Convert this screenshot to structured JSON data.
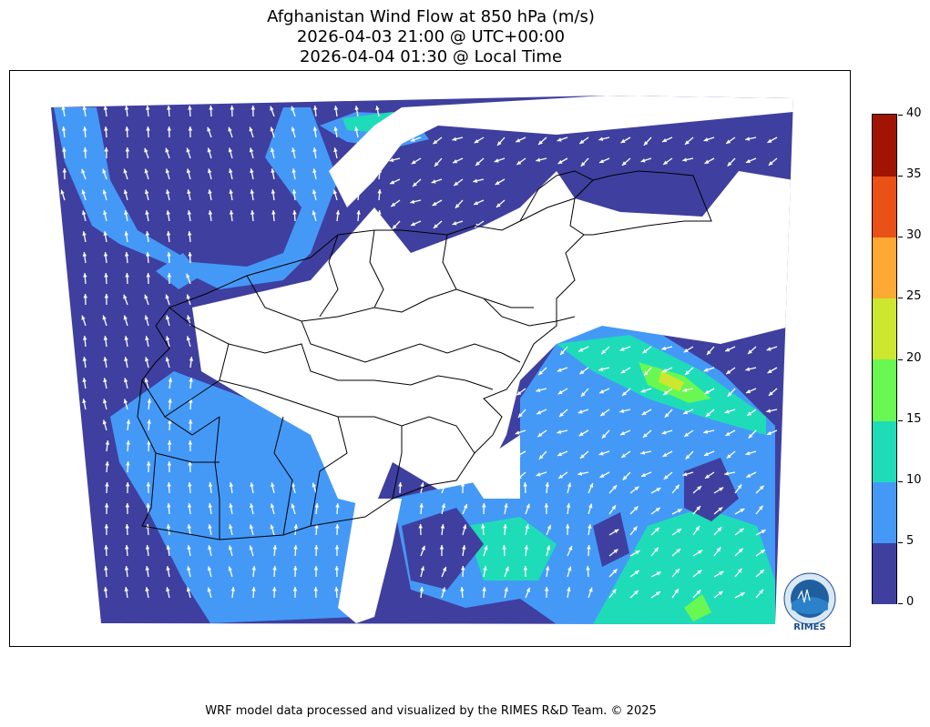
{
  "title": {
    "line1": "Afghanistan Wind Flow at 850 hPa (m/s)",
    "line2": "2026-04-03 21:00 @ UTC+00:00",
    "line3": "2026-04-04 01:30 @ Local Time"
  },
  "colorbar": {
    "ticks": [
      "0",
      "5",
      "10",
      "15",
      "20",
      "25",
      "30",
      "35",
      "40"
    ],
    "colors": [
      "#3f3f9f",
      "#4499f7",
      "#1fdcb8",
      "#69f752",
      "#cde72e",
      "#fda934",
      "#e95116",
      "#a11404"
    ]
  },
  "footer": "WRF model data processed and visualized by the RIMES R&D Team. © 2025",
  "logo": {
    "text": "RIMES"
  },
  "colors": {
    "frame": "#000000",
    "arrow": "#ffffff",
    "border": "#000000"
  }
}
